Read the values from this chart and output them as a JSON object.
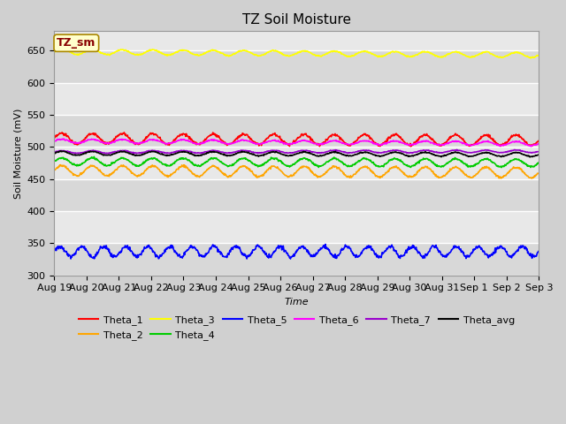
{
  "title": "TZ Soil Moisture",
  "xlabel": "Time",
  "ylabel": "Soil Moisture (mV)",
  "ylim": [
    300,
    680
  ],
  "yticks": [
    300,
    350,
    400,
    450,
    500,
    550,
    600,
    650
  ],
  "date_labels": [
    "Aug 19",
    "Aug 20",
    "Aug 21",
    "Aug 22",
    "Aug 23",
    "Aug 24",
    "Aug 25",
    "Aug 26",
    "Aug 27",
    "Aug 28",
    "Aug 29",
    "Aug 30",
    "Aug 31",
    "Sep 1",
    "Sep 2",
    "Sep 3"
  ],
  "n_points": 1000,
  "series_order": [
    "Theta_1",
    "Theta_2",
    "Theta_3",
    "Theta_4",
    "Theta_5",
    "Theta_6",
    "Theta_7",
    "Theta_avg"
  ],
  "series": {
    "Theta_1": {
      "color": "#ff0000",
      "base": 513,
      "amp": 8,
      "freq": 16,
      "trend": -0.003,
      "noise": 1.0
    },
    "Theta_2": {
      "color": "#ffa500",
      "base": 463,
      "amp": 8,
      "freq": 16,
      "trend": -0.003,
      "noise": 0.8
    },
    "Theta_3": {
      "color": "#ffff00",
      "base": 648,
      "amp": 4,
      "freq": 16,
      "trend": -0.005,
      "noise": 0.5
    },
    "Theta_4": {
      "color": "#00cc00",
      "base": 477,
      "amp": 6,
      "freq": 16,
      "trend": -0.002,
      "noise": 0.7
    },
    "Theta_5": {
      "color": "#0000ff",
      "base": 337,
      "amp": 8,
      "freq": 22,
      "trend": 0.0,
      "noise": 1.5
    },
    "Theta_6": {
      "color": "#ff00ff",
      "base": 509,
      "amp": 3,
      "freq": 16,
      "trend": -0.004,
      "noise": 0.5
    },
    "Theta_7": {
      "color": "#9900cc",
      "base": 492,
      "amp": 2,
      "freq": 16,
      "trend": 0.001,
      "noise": 0.3
    },
    "Theta_avg": {
      "color": "#000000",
      "base": 490,
      "amp": 3,
      "freq": 16,
      "trend": -0.002,
      "noise": 0.4
    }
  },
  "legend_label": "TZ_sm",
  "legend_box_facecolor": "#ffffcc",
  "legend_box_edgecolor": "#aa8800",
  "legend_text_color": "#880000",
  "bg_bands": [
    {
      "ymin": 300,
      "ymax": 350,
      "color": "#d8d8d8"
    },
    {
      "ymin": 350,
      "ymax": 400,
      "color": "#e8e8e8"
    },
    {
      "ymin": 400,
      "ymax": 450,
      "color": "#d8d8d8"
    },
    {
      "ymin": 450,
      "ymax": 500,
      "color": "#e8e8e8"
    },
    {
      "ymin": 500,
      "ymax": 550,
      "color": "#d8d8d8"
    },
    {
      "ymin": 550,
      "ymax": 600,
      "color": "#e8e8e8"
    },
    {
      "ymin": 600,
      "ymax": 650,
      "color": "#d8d8d8"
    },
    {
      "ymin": 650,
      "ymax": 680,
      "color": "#e8e8e8"
    }
  ],
  "grid_line_color": "#ffffff",
  "title_fontsize": 11,
  "axis_label_fontsize": 8,
  "tick_fontsize": 8,
  "legend_fontsize": 8
}
